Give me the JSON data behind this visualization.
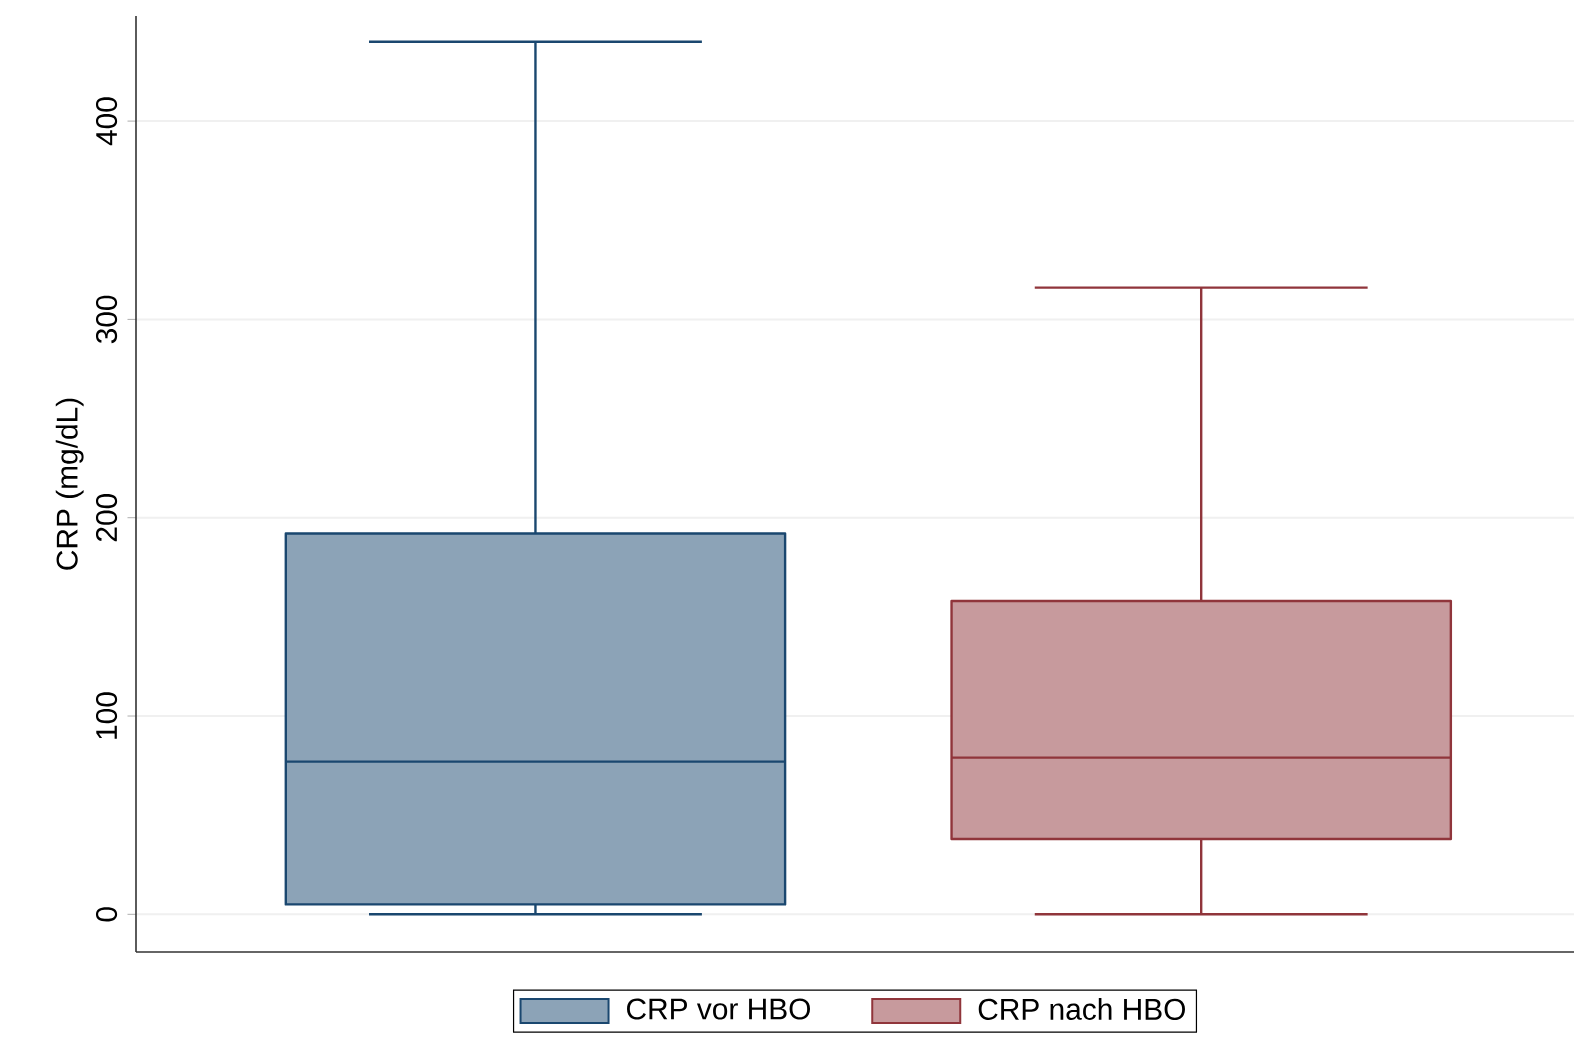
{
  "chart_data": {
    "type": "box",
    "ylabel": "CRP (mg/dL)",
    "categories": [
      null
    ],
    "series": [
      {
        "name": "CRP vor HBO",
        "color": "#1a476f",
        "boxes": [
          {
            "low": 0,
            "q1": 5,
            "median": 77,
            "q3": 192,
            "high": 440
          }
        ]
      },
      {
        "name": "CRP nach HBO",
        "color": "#90353b",
        "boxes": [
          {
            "low": 0,
            "q1": 38,
            "median": 79,
            "q3": 158,
            "high": 316
          }
        ]
      }
    ],
    "ylim": [
      -19,
      453
    ],
    "yticks": [
      0,
      100,
      200,
      300,
      400
    ],
    "grid": "y",
    "legend": "bottom"
  }
}
